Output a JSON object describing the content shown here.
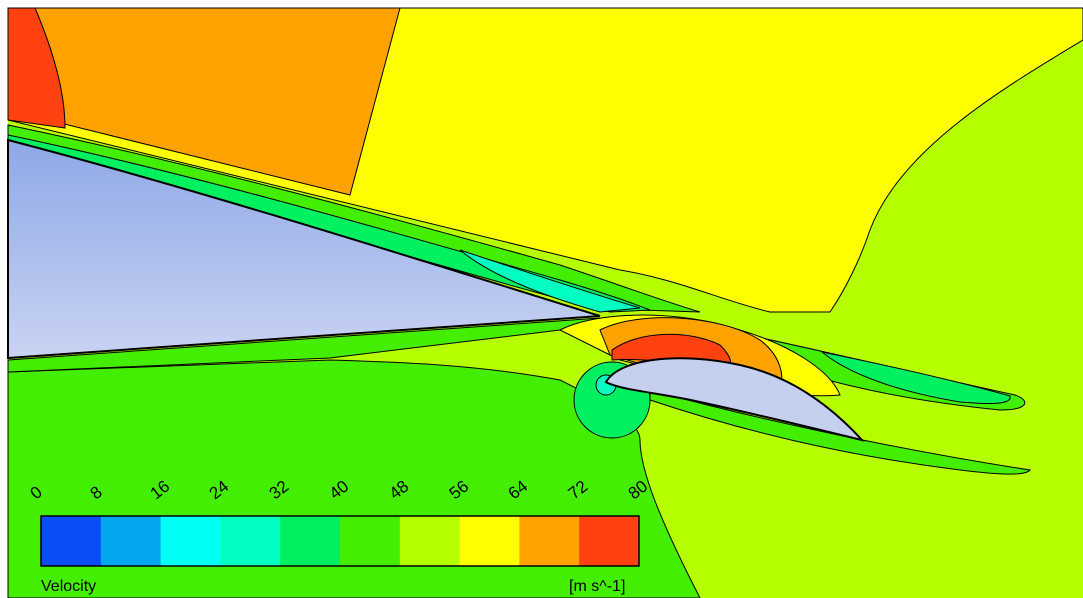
{
  "legend": {
    "variable": "Velocity",
    "unit": "[m s^-1]",
    "ticks": [
      "0",
      "8",
      "16",
      "24",
      "32",
      "40",
      "48",
      "56",
      "64",
      "72",
      "80"
    ],
    "colors": [
      "#0a4df5",
      "#04a6f0",
      "#00fff5",
      "#00ffc0",
      "#00f060",
      "#44ee00",
      "#b6ff00",
      "#ffff00",
      "#ffa200",
      "#ff4210"
    ]
  },
  "field_colors": {
    "yellow": "#ffff00",
    "yellow_green": "#b6ff00",
    "green": "#44ee00",
    "teal": "#00f060",
    "cyan": "#00ffc0",
    "orange": "#ffa200",
    "red": "#ff4210",
    "airfoil": "#c5cfee",
    "wing_top": "#8ea8e6",
    "wing_bottom": "#c9d3f3"
  }
}
